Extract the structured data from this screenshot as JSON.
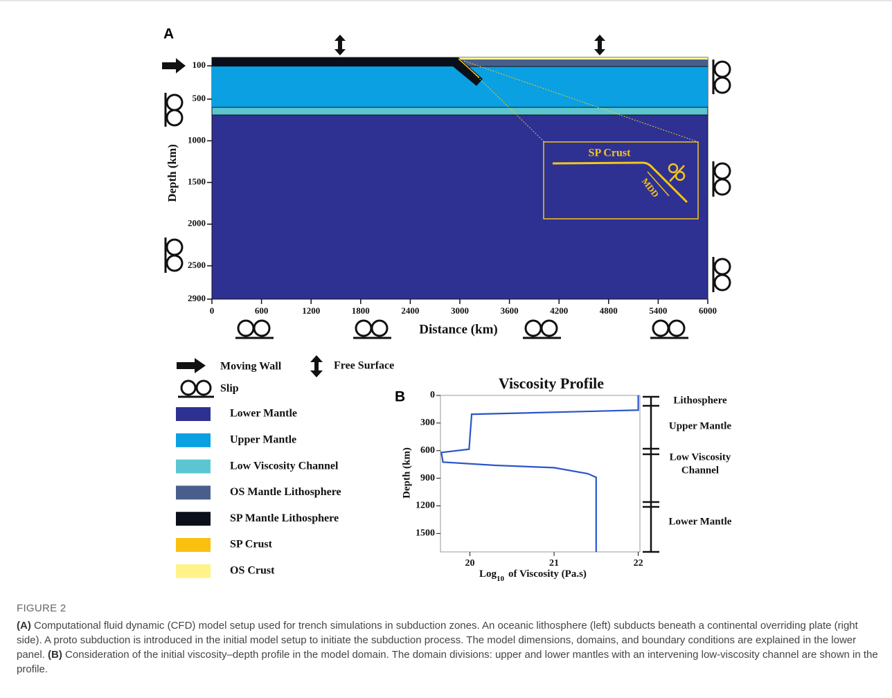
{
  "figure": {
    "panel_a": {
      "label": "A",
      "y_label": "Depth (km)",
      "x_label": "Distance (km)",
      "ylim": [
        0,
        2900
      ],
      "yticks": [
        100,
        500,
        1000,
        1500,
        2000,
        2500,
        2900
      ],
      "xlim": [
        0,
        6000
      ],
      "xticks": [
        0,
        600,
        1200,
        1800,
        2400,
        3000,
        3600,
        4200,
        4800,
        5400,
        6000
      ],
      "inset_label": "SP Crust",
      "inset_mdd": "MDD"
    },
    "legend": {
      "moving_wall": "Moving Wall",
      "free_surface": "Free Surface",
      "slip": "Slip",
      "items": [
        {
          "label": "Lower Mantle",
          "color": "#2e3192"
        },
        {
          "label": "Upper Mantle",
          "color": "#0aa0e2"
        },
        {
          "label": "Low Viscosity Channel",
          "color": "#5bc6d2"
        },
        {
          "label": "OS Mantle Lithosphere",
          "color": "#4a5e8c"
        },
        {
          "label": "SP Mantle Lithosphere",
          "color": "#0b0f1a"
        },
        {
          "label": "SP Crust",
          "color": "#f9c010"
        },
        {
          "label": "OS Crust",
          "color": "#fff38a"
        }
      ]
    },
    "panel_b": {
      "type": "line",
      "label": "B",
      "title": "Viscosity Profile",
      "y_label": "Depth (km)",
      "x_label": {
        "base": "Log",
        "sub": "10",
        "rest": "of Viscosity (Pa.s)"
      },
      "color": "#2a55c8",
      "xlim": [
        19.65,
        22.02
      ],
      "xticks": [
        20,
        21,
        22
      ],
      "ylim": [
        0,
        1700
      ],
      "yticks": [
        0,
        300,
        600,
        900,
        1200,
        1500
      ],
      "x": [
        22,
        22,
        20.02,
        20.02,
        19.99,
        19.66,
        19.68,
        20.3,
        21.0,
        21.4,
        21.5,
        21.5
      ],
      "y": [
        0,
        160,
        205,
        215,
        585,
        620,
        725,
        760,
        785,
        850,
        890,
        1700
      ],
      "domains": [
        [
          "Lithosphere"
        ],
        [
          "Upper Mantle"
        ],
        [
          "Low Viscosity",
          "Channel"
        ],
        [
          "Lower Mantle"
        ]
      ]
    }
  },
  "caption": {
    "heading": "FIGURE 2",
    "a_label": "(A)",
    "a_text": "Computational fluid dynamic (CFD) model setup used for trench simulations in subduction zones. An oceanic lithosphere (left) subducts beneath a continental overriding plate (right side). A proto subduction is introduced in the initial model setup to initiate the subduction process. The model dimensions, domains, and boundary conditions are explained in the lower panel.",
    "b_label": "(B)",
    "b_text": "Consideration of the initial viscosity–depth profile in the model domain. The domain divisions: upper and lower mantles with an intervening low-viscosity channel are shown in the profile."
  }
}
